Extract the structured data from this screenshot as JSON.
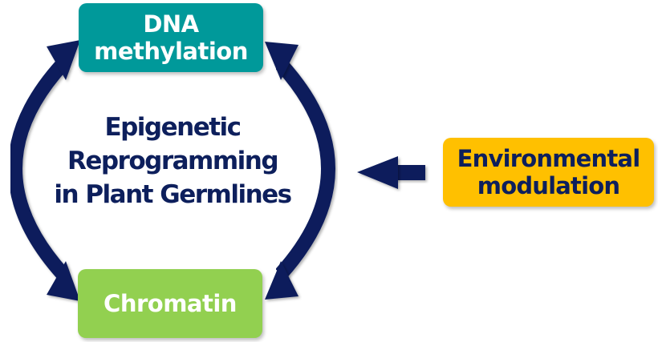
{
  "nodes": {
    "dna_methylation": {
      "lines": [
        "DNA",
        "methylation"
      ]
    },
    "chromatin": {
      "label": "Chromatin"
    },
    "environmental_modulation": {
      "lines": [
        "Environmental",
        "modulation"
      ]
    }
  },
  "center": {
    "lines": [
      "Epigenetic",
      "Reprogramming",
      "in Plant Germlines"
    ]
  },
  "colors": {
    "dna_box": "#00999a",
    "chromatin_box": "#92d050",
    "environment_box": "#ffc000",
    "arrow": "#0d1f5c",
    "center_text": "#0d1f5c",
    "env_text": "#0d1f5c"
  },
  "icons": [
    "cycle-arrow-left",
    "cycle-arrow-right",
    "input-arrow"
  ]
}
